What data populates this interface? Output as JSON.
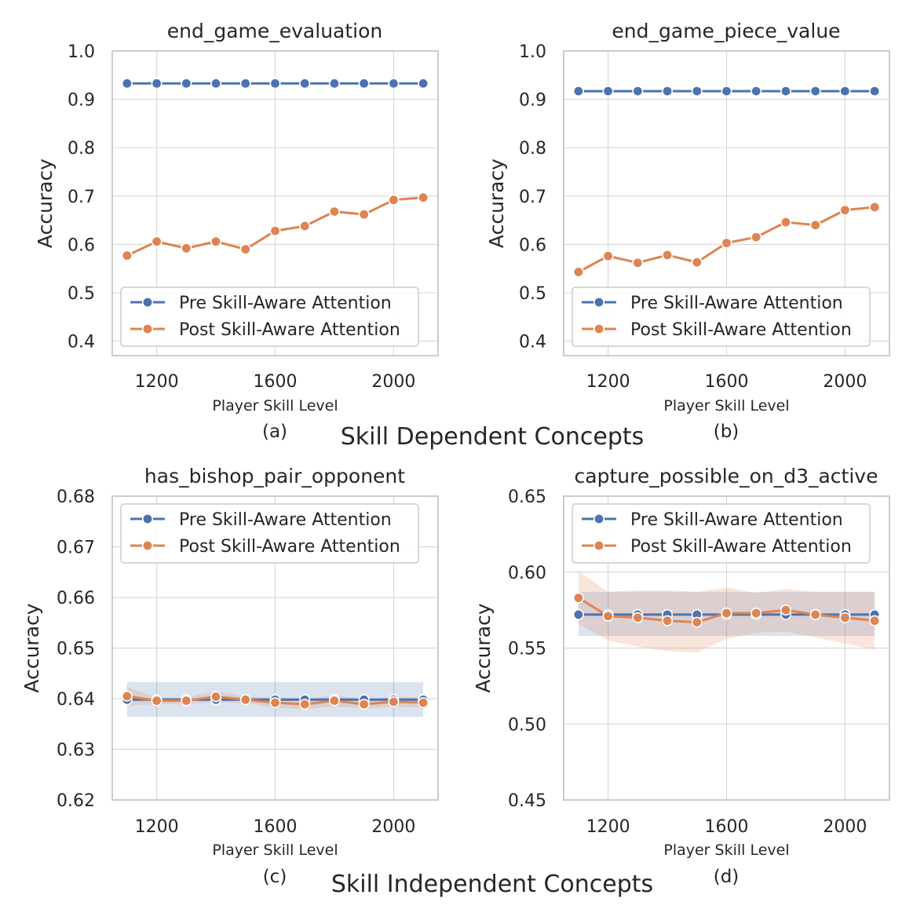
{
  "colors": {
    "pre": "#4C72B0",
    "post": "#DD8452",
    "pre_band": "#4C72B0",
    "post_band": "#DD8452"
  },
  "group_labels": {
    "top": "Skill Dependent Concepts",
    "bottom": "Skill Independent Concepts"
  },
  "legend": {
    "pre": "Pre Skill-Aware Attention",
    "post": "Post Skill-Aware Attention"
  },
  "chart_data": [
    {
      "type": "line",
      "title": "end_game_evaluation",
      "sublabel": "(a)",
      "xlabel": "Player Skill Level",
      "ylabel": "Accuracy",
      "x": [
        1100,
        1200,
        1300,
        1400,
        1500,
        1600,
        1700,
        1800,
        1900,
        2000,
        2100
      ],
      "xlim": [
        1050,
        2150
      ],
      "ylim": [
        0.37,
        1.0
      ],
      "xticks": [
        1200,
        1600,
        2000
      ],
      "xtick_labels": [
        "1200",
        "1600",
        "2000"
      ],
      "yticks": [
        0.4,
        0.5,
        0.6,
        0.7,
        0.8,
        0.9,
        1.0
      ],
      "ytick_labels": [
        "0.4",
        "0.5",
        "0.6",
        "0.7",
        "0.8",
        "0.9",
        "1.0"
      ],
      "legend_position": "lower-left",
      "series": [
        {
          "name": "Pre Skill-Aware Attention",
          "values": [
            0.933,
            0.933,
            0.933,
            0.933,
            0.933,
            0.933,
            0.933,
            0.933,
            0.933,
            0.933,
            0.933
          ]
        },
        {
          "name": "Post Skill-Aware Attention",
          "values": [
            0.577,
            0.606,
            0.592,
            0.606,
            0.59,
            0.628,
            0.638,
            0.668,
            0.662,
            0.692,
            0.697
          ]
        }
      ]
    },
    {
      "type": "line",
      "title": "end_game_piece_value",
      "sublabel": "(b)",
      "xlabel": "Player Skill Level",
      "ylabel": "Accuracy",
      "x": [
        1100,
        1200,
        1300,
        1400,
        1500,
        1600,
        1700,
        1800,
        1900,
        2000,
        2100
      ],
      "xlim": [
        1050,
        2150
      ],
      "ylim": [
        0.37,
        1.0
      ],
      "xticks": [
        1200,
        1600,
        2000
      ],
      "xtick_labels": [
        "1200",
        "1600",
        "2000"
      ],
      "yticks": [
        0.4,
        0.5,
        0.6,
        0.7,
        0.8,
        0.9,
        1.0
      ],
      "ytick_labels": [
        "0.4",
        "0.5",
        "0.6",
        "0.7",
        "0.8",
        "0.9",
        "1.0"
      ],
      "legend_position": "lower-left",
      "series": [
        {
          "name": "Pre Skill-Aware Attention",
          "values": [
            0.917,
            0.917,
            0.917,
            0.917,
            0.917,
            0.917,
            0.917,
            0.917,
            0.917,
            0.917,
            0.917
          ]
        },
        {
          "name": "Post Skill-Aware Attention",
          "values": [
            0.543,
            0.576,
            0.562,
            0.578,
            0.563,
            0.603,
            0.615,
            0.646,
            0.64,
            0.671,
            0.677
          ]
        }
      ]
    },
    {
      "type": "line",
      "title": "has_bishop_pair_opponent",
      "sublabel": "(c)",
      "xlabel": "Player Skill Level",
      "ylabel": "Accuracy",
      "x": [
        1100,
        1200,
        1300,
        1400,
        1500,
        1600,
        1700,
        1800,
        1900,
        2000,
        2100
      ],
      "xlim": [
        1050,
        2150
      ],
      "ylim": [
        0.62,
        0.68
      ],
      "xticks": [
        1200,
        1600,
        2000
      ],
      "xtick_labels": [
        "1200",
        "1600",
        "2000"
      ],
      "yticks": [
        0.62,
        0.63,
        0.64,
        0.65,
        0.66,
        0.67,
        0.68
      ],
      "ytick_labels": [
        "0.62",
        "0.63",
        "0.64",
        "0.65",
        "0.66",
        "0.67",
        "0.68"
      ],
      "legend_position": "upper-left",
      "series": [
        {
          "name": "Pre Skill-Aware Attention",
          "values": [
            0.6398,
            0.6398,
            0.6398,
            0.6398,
            0.6398,
            0.6398,
            0.6398,
            0.6398,
            0.6398,
            0.6398,
            0.6398
          ],
          "band_low": [
            0.6364,
            0.6364,
            0.6364,
            0.6364,
            0.6364,
            0.6364,
            0.6364,
            0.6364,
            0.6364,
            0.6364,
            0.6364
          ],
          "band_high": [
            0.6433,
            0.6433,
            0.6433,
            0.6433,
            0.6433,
            0.6433,
            0.6433,
            0.6433,
            0.6433,
            0.6433,
            0.6433
          ]
        },
        {
          "name": "Post Skill-Aware Attention",
          "values": [
            0.6405,
            0.6396,
            0.6396,
            0.6404,
            0.6398,
            0.6392,
            0.6389,
            0.6396,
            0.6389,
            0.6394,
            0.6392
          ],
          "band_low": [
            0.6387,
            0.6389,
            0.639,
            0.6393,
            0.6392,
            0.6382,
            0.6379,
            0.6385,
            0.6381,
            0.6384,
            0.6382
          ],
          "band_high": [
            0.6423,
            0.6403,
            0.6402,
            0.6415,
            0.6404,
            0.6402,
            0.6399,
            0.6407,
            0.6397,
            0.6404,
            0.6402
          ]
        }
      ]
    },
    {
      "type": "line",
      "title": "capture_possible_on_d3_active",
      "sublabel": "(d)",
      "xlabel": "Player Skill Level",
      "ylabel": "Accuracy",
      "x": [
        1100,
        1200,
        1300,
        1400,
        1500,
        1600,
        1700,
        1800,
        1900,
        2000,
        2100
      ],
      "xlim": [
        1050,
        2150
      ],
      "ylim": [
        0.45,
        0.65
      ],
      "xticks": [
        1200,
        1600,
        2000
      ],
      "xtick_labels": [
        "1200",
        "1600",
        "2000"
      ],
      "yticks": [
        0.45,
        0.5,
        0.55,
        0.6,
        0.65
      ],
      "ytick_labels": [
        "0.45",
        "0.50",
        "0.55",
        "0.60",
        "0.65"
      ],
      "legend_position": "upper-left",
      "series": [
        {
          "name": "Pre Skill-Aware Attention",
          "values": [
            0.572,
            0.572,
            0.572,
            0.572,
            0.572,
            0.572,
            0.572,
            0.572,
            0.572,
            0.572,
            0.572
          ],
          "band_low": [
            0.558,
            0.558,
            0.558,
            0.558,
            0.558,
            0.558,
            0.558,
            0.558,
            0.558,
            0.558,
            0.558
          ],
          "band_high": [
            0.587,
            0.587,
            0.587,
            0.587,
            0.587,
            0.587,
            0.587,
            0.587,
            0.587,
            0.587,
            0.587
          ]
        },
        {
          "name": "Post Skill-Aware Attention",
          "values": [
            0.583,
            0.571,
            0.57,
            0.568,
            0.567,
            0.573,
            0.573,
            0.575,
            0.572,
            0.57,
            0.568
          ],
          "band_low": [
            0.566,
            0.555,
            0.551,
            0.548,
            0.547,
            0.556,
            0.56,
            0.561,
            0.557,
            0.553,
            0.549
          ],
          "band_high": [
            0.601,
            0.587,
            0.588,
            0.588,
            0.587,
            0.59,
            0.586,
            0.589,
            0.587,
            0.587,
            0.587
          ]
        }
      ]
    }
  ]
}
